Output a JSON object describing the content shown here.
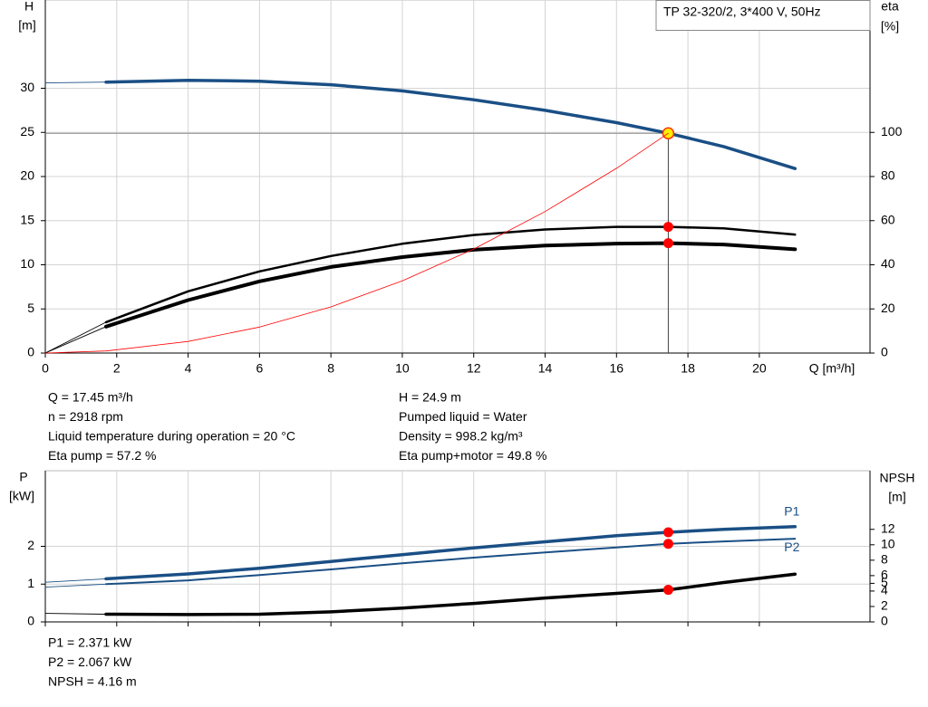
{
  "chart_data": [
    {
      "type": "line",
      "title": "TP 32-320/2, 3*400 V, 50Hz",
      "y_label": "H",
      "y_unit": "[m]",
      "y2_label": "eta",
      "y2_unit": "[%]",
      "x_label": "Q [m³/h]",
      "xlim": [
        0,
        23.1
      ],
      "xticks": [
        0,
        2,
        4,
        6,
        8,
        10,
        12,
        14,
        16,
        18,
        20
      ],
      "ylim": [
        0,
        40
      ],
      "yticks": [
        0,
        5,
        10,
        15,
        20,
        25,
        30
      ],
      "y2lim": [
        0,
        160
      ],
      "y2ticks": [
        0,
        20,
        40,
        60,
        80,
        100
      ],
      "grid": true,
      "x": [
        0,
        1.7,
        4,
        6,
        8,
        10,
        12,
        14,
        16,
        17.45,
        19,
        21
      ],
      "series": [
        {
          "color": "#1a4f85",
          "values": [
            30.6,
            30.7,
            30.9,
            30.8,
            30.4,
            29.7,
            28.7,
            27.5,
            26.1,
            24.9,
            23.4,
            20.9
          ]
        },
        {
          "color": "#000000",
          "axis": "y2",
          "values": [
            0,
            14,
            28,
            37,
            44,
            49.5,
            53.5,
            56,
            57.2,
            57.2,
            56.5,
            53.7
          ]
        },
        {
          "color": "#000000",
          "axis": "y2",
          "values": [
            0,
            12,
            24,
            32.5,
            39,
            43.5,
            46.8,
            48.7,
            49.6,
            49.8,
            49.2,
            47
          ]
        },
        {
          "color": "#ff0000",
          "values": [
            0,
            0.236,
            1.31,
            2.94,
            5.23,
            8.18,
            11.78,
            16.03,
            20.93,
            24.9,
            null,
            null
          ]
        }
      ],
      "annotations": [
        [
          "Q = 17.45 m³/h",
          "n = 2918 rpm",
          "Liquid temperature during operation = 20 °C",
          "Eta pump = 57.2 %"
        ],
        [
          "H = 24.9 m",
          "Pumped liquid = Water",
          "Density = 998.2 kg/m³",
          "Eta pump+motor = 49.8 %"
        ]
      ]
    },
    {
      "type": "line",
      "y_label": "P",
      "y_unit": "[kW]",
      "y2_label": "NPSH",
      "y2_unit": "[m]",
      "xlim": [
        0,
        23.1
      ],
      "xticks": [
        0,
        2,
        4,
        6,
        8,
        10,
        12,
        14,
        16,
        18,
        20
      ],
      "ylim": [
        0,
        4
      ],
      "yticks": [
        0,
        1,
        2
      ],
      "y2lim": [
        0,
        19.6
      ],
      "y2ticks": [
        0,
        2,
        4,
        5,
        6,
        8,
        10,
        12
      ],
      "grid": true,
      "x": [
        0,
        1.7,
        4,
        6,
        8,
        10,
        12,
        14,
        16,
        17.45,
        19,
        21
      ],
      "series": [
        {
          "name": "P1",
          "color": "#1a4f85",
          "values": [
            1.05,
            1.14,
            1.27,
            1.42,
            1.6,
            1.78,
            1.96,
            2.12,
            2.28,
            2.371,
            2.45,
            2.52
          ]
        },
        {
          "name": "P2",
          "color": "#1a4f85",
          "values": [
            0.92,
            1.0,
            1.1,
            1.24,
            1.39,
            1.55,
            1.7,
            1.84,
            1.97,
            2.067,
            2.13,
            2.2
          ]
        },
        {
          "color": "#000000",
          "axis": "y2",
          "values": [
            1.1,
            1.0,
            0.95,
            1.0,
            1.3,
            1.8,
            2.4,
            3.1,
            3.7,
            4.16,
            5.1,
            6.2
          ]
        }
      ],
      "annotations": [
        [
          "P1 = 2.371 kW",
          "P2 = 2.067 kW",
          "NPSH = 4.16 m"
        ]
      ]
    }
  ]
}
